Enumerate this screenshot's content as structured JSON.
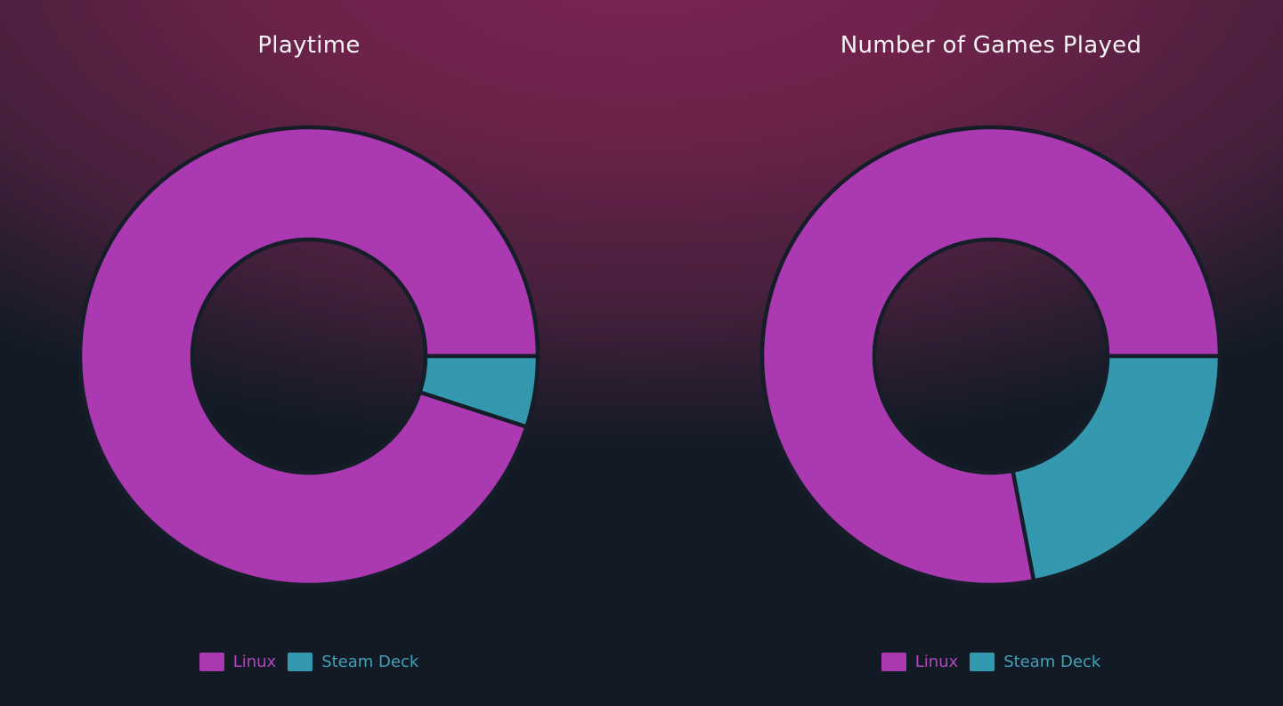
{
  "page": {
    "background_base_color": "#111a25",
    "background_glow_color": "#7d2454",
    "title_color": "#f4f2f4",
    "wedge_border_color": "#151d28"
  },
  "chart_data": [
    {
      "type": "pie",
      "subtype": "donut",
      "title": "Playtime",
      "labels": [
        "Linux",
        "Steam Deck"
      ],
      "values": [
        95,
        5
      ],
      "values_unit": "percent",
      "colors": [
        "#ab39b1",
        "#3498ae"
      ],
      "start_angle_deg": 0,
      "direction": "counterclockwise",
      "inner_radius_ratio": 0.51,
      "grid": false,
      "legend_position": "bottom",
      "legend": [
        {
          "label": "Linux",
          "swatch_color": "#ab39b1",
          "text_color": "#b347bd"
        },
        {
          "label": "Steam Deck",
          "swatch_color": "#3498ae",
          "text_color": "#45a1b7"
        }
      ]
    },
    {
      "type": "pie",
      "subtype": "donut",
      "title": "Number of Games Played",
      "labels": [
        "Linux",
        "Steam Deck"
      ],
      "values": [
        78,
        22
      ],
      "values_unit": "percent",
      "colors": [
        "#ab39b1",
        "#3498ae"
      ],
      "start_angle_deg": 0,
      "direction": "counterclockwise",
      "inner_radius_ratio": 0.51,
      "grid": false,
      "legend_position": "bottom",
      "legend": [
        {
          "label": "Linux",
          "swatch_color": "#ab39b1",
          "text_color": "#b347bd"
        },
        {
          "label": "Steam Deck",
          "swatch_color": "#3498ae",
          "text_color": "#45a1b7"
        }
      ]
    }
  ]
}
